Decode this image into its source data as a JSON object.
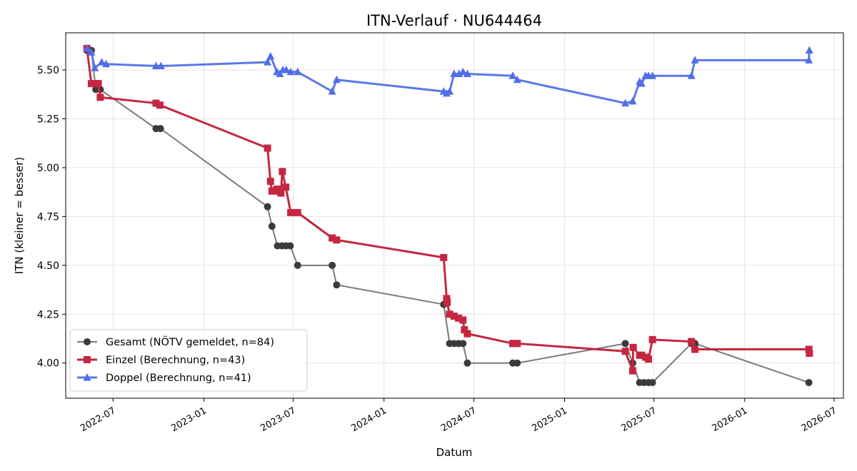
{
  "chart_data": {
    "type": "line",
    "title": "ITN-Verlauf · NU644464",
    "xlabel": "Datum",
    "ylabel": "ITN  (kleiner = besser)",
    "xlim": [
      "2022-03-27",
      "2026-07-20"
    ],
    "ylim": [
      3.82,
      5.69
    ],
    "x_ticks": [
      "2022-07-01",
      "2023-01-01",
      "2023-07-01",
      "2024-01-01",
      "2024-07-01",
      "2025-01-01",
      "2025-07-01",
      "2026-01-01",
      "2026-07-01"
    ],
    "x_tick_labels": [
      "2022-07",
      "2023-01",
      "2023-07",
      "2024-01",
      "2024-07",
      "2025-01",
      "2025-07",
      "2026-01",
      "2026-07"
    ],
    "y_ticks": [
      4.0,
      4.25,
      4.5,
      4.75,
      5.0,
      5.25,
      5.5
    ],
    "y_tick_labels": [
      "4.00",
      "4.25",
      "4.50",
      "4.75",
      "5.00",
      "5.25",
      "5.50"
    ],
    "grid": true,
    "legend_position": "lower-left",
    "series": [
      {
        "name": "Gesamt (NÖTV gemeldet, n=84)",
        "color": "#3b3b3b",
        "line_color": "#7a7a7a",
        "marker": "circle",
        "points": [
          [
            "2022-05-09",
            5.6
          ],
          [
            "2022-05-18",
            5.6
          ],
          [
            "2022-05-27",
            5.4
          ],
          [
            "2022-06-05",
            5.4
          ],
          [
            "2022-09-26",
            5.2
          ],
          [
            "2022-10-05",
            5.2
          ],
          [
            "2023-05-10",
            4.8
          ],
          [
            "2023-05-19",
            4.7
          ],
          [
            "2023-05-30",
            4.6
          ],
          [
            "2023-06-08",
            4.6
          ],
          [
            "2023-06-16",
            4.6
          ],
          [
            "2023-06-25",
            4.6
          ],
          [
            "2023-07-10",
            4.5
          ],
          [
            "2023-09-18",
            4.5
          ],
          [
            "2023-09-27",
            4.4
          ],
          [
            "2024-05-01",
            4.3
          ],
          [
            "2024-05-13",
            4.1
          ],
          [
            "2024-05-22",
            4.1
          ],
          [
            "2024-05-31",
            4.1
          ],
          [
            "2024-06-09",
            4.1
          ],
          [
            "2024-06-18",
            4.0
          ],
          [
            "2024-09-18",
            4.0
          ],
          [
            "2024-09-27",
            4.0
          ],
          [
            "2025-05-04",
            4.1
          ],
          [
            "2025-05-19",
            4.0
          ],
          [
            "2025-06-02",
            3.9
          ],
          [
            "2025-06-11",
            3.9
          ],
          [
            "2025-06-20",
            3.9
          ],
          [
            "2025-06-28",
            3.9
          ],
          [
            "2025-09-15",
            4.1
          ],
          [
            "2025-09-22",
            4.1
          ],
          [
            "2026-05-11",
            3.9
          ]
        ]
      },
      {
        "name": "Einzel (Berechnung, n=43)",
        "color": "#c62640",
        "line_color": "#c62640",
        "marker": "square",
        "points": [
          [
            "2022-05-09",
            5.61
          ],
          [
            "2022-05-18",
            5.43
          ],
          [
            "2022-05-28",
            5.43
          ],
          [
            "2022-06-01",
            5.43
          ],
          [
            "2022-06-05",
            5.36
          ],
          [
            "2022-09-26",
            5.33
          ],
          [
            "2022-10-04",
            5.32
          ],
          [
            "2023-05-10",
            5.1
          ],
          [
            "2023-05-16",
            4.93
          ],
          [
            "2023-05-19",
            4.88
          ],
          [
            "2023-05-29",
            4.89
          ],
          [
            "2023-06-02",
            4.88
          ],
          [
            "2023-06-06",
            4.87
          ],
          [
            "2023-06-09",
            4.98
          ],
          [
            "2023-06-16",
            4.9
          ],
          [
            "2023-06-26",
            4.77
          ],
          [
            "2023-07-10",
            4.77
          ],
          [
            "2023-09-18",
            4.64
          ],
          [
            "2023-09-27",
            4.63
          ],
          [
            "2024-05-01",
            4.54
          ],
          [
            "2024-05-07",
            4.33
          ],
          [
            "2024-05-08",
            4.31
          ],
          [
            "2024-05-13",
            4.25
          ],
          [
            "2024-05-22",
            4.24
          ],
          [
            "2024-05-31",
            4.23
          ],
          [
            "2024-06-09",
            4.22
          ],
          [
            "2024-06-12",
            4.17
          ],
          [
            "2024-06-18",
            4.15
          ],
          [
            "2024-09-18",
            4.1
          ],
          [
            "2024-09-27",
            4.1
          ],
          [
            "2025-05-04",
            4.06
          ],
          [
            "2025-05-19",
            3.96
          ],
          [
            "2025-05-20",
            4.08
          ],
          [
            "2025-06-02",
            4.04
          ],
          [
            "2025-06-06",
            4.04
          ],
          [
            "2025-06-14",
            4.03
          ],
          [
            "2025-06-20",
            4.02
          ],
          [
            "2025-06-28",
            4.12
          ],
          [
            "2025-09-15",
            4.11
          ],
          [
            "2025-09-22",
            4.07
          ],
          [
            "2026-05-11",
            4.07
          ],
          [
            "2026-05-12",
            4.05
          ]
        ]
      },
      {
        "name": "Doppel (Berechnung, n=41)",
        "color": "#4f6ee8",
        "line_color": "#5a78ea",
        "marker": "triangle",
        "points": [
          [
            "2022-05-09",
            5.61
          ],
          [
            "2022-05-18",
            5.59
          ],
          [
            "2022-05-25",
            5.51
          ],
          [
            "2022-06-08",
            5.54
          ],
          [
            "2022-06-17",
            5.53
          ],
          [
            "2022-09-26",
            5.52
          ],
          [
            "2022-10-06",
            5.52
          ],
          [
            "2023-05-10",
            5.54
          ],
          [
            "2023-05-16",
            5.57
          ],
          [
            "2023-05-29",
            5.49
          ],
          [
            "2023-06-04",
            5.48
          ],
          [
            "2023-06-10",
            5.5
          ],
          [
            "2023-06-17",
            5.5
          ],
          [
            "2023-06-26",
            5.49
          ],
          [
            "2023-07-10",
            5.49
          ],
          [
            "2023-09-18",
            5.39
          ],
          [
            "2023-09-27",
            5.45
          ],
          [
            "2024-05-01",
            5.39
          ],
          [
            "2024-05-07",
            5.38
          ],
          [
            "2024-05-13",
            5.39
          ],
          [
            "2024-05-22",
            5.48
          ],
          [
            "2024-06-01",
            5.48
          ],
          [
            "2024-06-09",
            5.49
          ],
          [
            "2024-06-18",
            5.48
          ],
          [
            "2024-09-18",
            5.47
          ],
          [
            "2024-09-27",
            5.45
          ],
          [
            "2025-05-04",
            5.33
          ],
          [
            "2025-05-19",
            5.34
          ],
          [
            "2025-06-02",
            5.44
          ],
          [
            "2025-06-06",
            5.43
          ],
          [
            "2025-06-14",
            5.47
          ],
          [
            "2025-06-20",
            5.47
          ],
          [
            "2025-06-28",
            5.47
          ],
          [
            "2025-09-15",
            5.47
          ],
          [
            "2025-09-22",
            5.55
          ],
          [
            "2026-05-11",
            5.55
          ],
          [
            "2026-05-12",
            5.6
          ]
        ]
      }
    ]
  }
}
